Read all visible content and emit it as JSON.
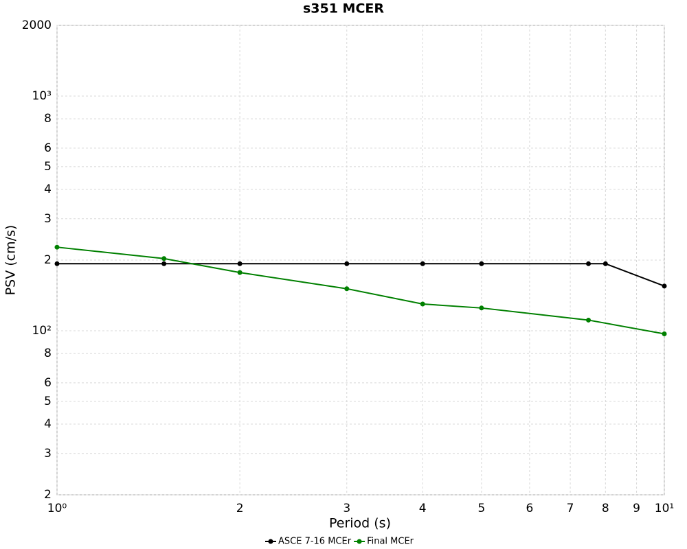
{
  "chart_data": {
    "type": "line",
    "title": "s351 MCER",
    "x_label": "Period (s)",
    "y_label": "PSV (cm/s)",
    "log_x": true,
    "log_y": true,
    "grid": true,
    "xlim": [
      1,
      10
    ],
    "ylim": [
      20,
      2000
    ],
    "xticks": [
      {
        "value": 1,
        "label": "10⁰"
      },
      2,
      3,
      4,
      5,
      6,
      7,
      8,
      9,
      {
        "value": 10,
        "label": "10¹"
      }
    ],
    "yticks": [
      2000,
      {
        "value": 1000,
        "label": "10³"
      },
      {
        "value": 800,
        "label": "8"
      },
      {
        "value": 600,
        "label": "6"
      },
      {
        "value": 500,
        "label": "5"
      },
      {
        "value": 400,
        "label": "4"
      },
      {
        "value": 300,
        "label": "3"
      },
      {
        "value": 200,
        "label": "2"
      },
      {
        "value": 100,
        "label": "10²"
      },
      {
        "value": 80,
        "label": "8"
      },
      {
        "value": 60,
        "label": "6"
      },
      {
        "value": 50,
        "label": "5"
      },
      {
        "value": 40,
        "label": "4"
      },
      {
        "value": 30,
        "label": "3"
      },
      {
        "value": 20,
        "label": "2"
      }
    ],
    "series": [
      {
        "name": "ASCE 7-16 MCEr",
        "color": "#000000",
        "x": [
          1,
          1.5,
          2,
          3,
          4,
          5,
          7.5,
          8,
          10
        ],
        "values": [
          193,
          193,
          193,
          193,
          193,
          193,
          193,
          193,
          155
        ]
      },
      {
        "name": "Final MCEr",
        "color": "#008000",
        "x": [
          1,
          1.5,
          2,
          3,
          4,
          5,
          7.5,
          10
        ],
        "values": [
          227,
          203,
          177,
          151,
          130,
          125,
          111,
          97
        ]
      }
    ]
  }
}
